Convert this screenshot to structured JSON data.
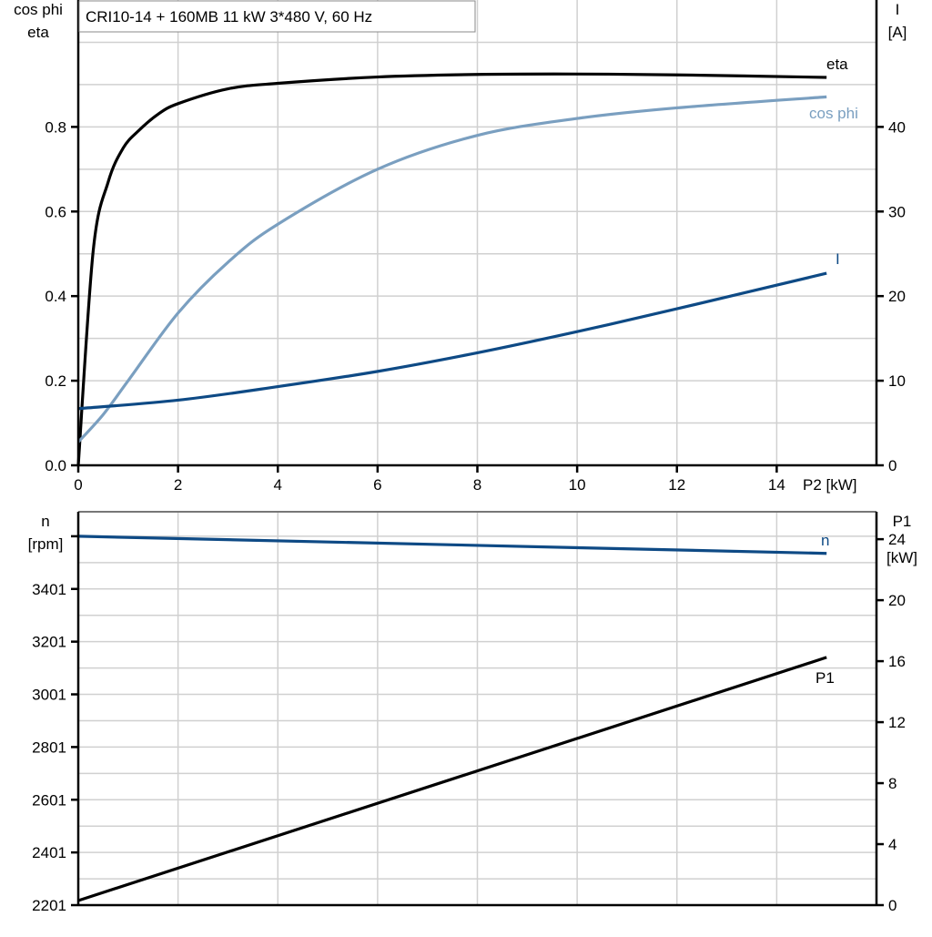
{
  "title": "CRI10-14 + 160MB   11 kW   3*480 V, 60 Hz",
  "colors": {
    "eta": "#000000",
    "cos_phi": "#7a9fc0",
    "I": "#0e4a85",
    "n": "#0e4a85",
    "P1": "#000000",
    "grid": "#d0d0d0"
  },
  "chart_data": [
    {
      "type": "line",
      "xlabel": "P2 [kW]",
      "xlim": [
        0,
        16
      ],
      "xticks": [
        0,
        2,
        4,
        6,
        8,
        10,
        12,
        14
      ],
      "ylabel_left": [
        "cos phi",
        "eta"
      ],
      "ylim_left": [
        0,
        1.1
      ],
      "yticks_left": [
        "0.0",
        "0.2",
        "0.4",
        "0.6",
        "0.8"
      ],
      "ylabel_right": [
        "I",
        "[A]"
      ],
      "ylim_right": [
        0,
        55
      ],
      "yticks_right": [
        "0",
        "10",
        "20",
        "30",
        "40"
      ],
      "grid": true,
      "series": [
        {
          "name": "eta",
          "axis": "left",
          "x": [
            0,
            0.3,
            0.6,
            0.9,
            1.2,
            1.6,
            2,
            3,
            4,
            6,
            8,
            10,
            12,
            15
          ],
          "y": [
            0,
            0.508,
            0.67,
            0.75,
            0.79,
            0.83,
            0.855,
            0.89,
            0.903,
            0.918,
            0.924,
            0.925,
            0.923,
            0.917
          ]
        },
        {
          "name": "cos phi",
          "axis": "left",
          "x": [
            0,
            0.5,
            1,
            2,
            3,
            4,
            6,
            8,
            10,
            12,
            15
          ],
          "y": [
            0.055,
            0.12,
            0.2,
            0.36,
            0.48,
            0.57,
            0.7,
            0.78,
            0.82,
            0.845,
            0.871
          ]
        },
        {
          "name": "I",
          "axis": "right",
          "x": [
            0,
            2,
            4,
            6,
            8,
            10,
            12,
            15
          ],
          "y": [
            6.7,
            7.7,
            9.3,
            11.1,
            13.3,
            15.8,
            18.5,
            22.7
          ]
        }
      ]
    },
    {
      "type": "line",
      "xlim": [
        0,
        16
      ],
      "ylabel_left": [
        "n",
        "[rpm]"
      ],
      "ylim_left": [
        2201,
        3694
      ],
      "yticks_left": [
        "2201",
        "2401",
        "2601",
        "2801",
        "3001",
        "3201",
        "3401"
      ],
      "ylabel_right": [
        "P1",
        "[kW]"
      ],
      "ylim_right": [
        0,
        25.8
      ],
      "yticks_right": [
        "0",
        "4",
        "8",
        "12",
        "16",
        "20",
        "24"
      ],
      "grid": true,
      "series": [
        {
          "name": "n",
          "axis": "left",
          "x": [
            0,
            15
          ],
          "y": [
            3601,
            3536
          ]
        },
        {
          "name": "P1",
          "axis": "right",
          "x": [
            0,
            15
          ],
          "y": [
            0.3,
            16.25
          ]
        }
      ]
    }
  ]
}
